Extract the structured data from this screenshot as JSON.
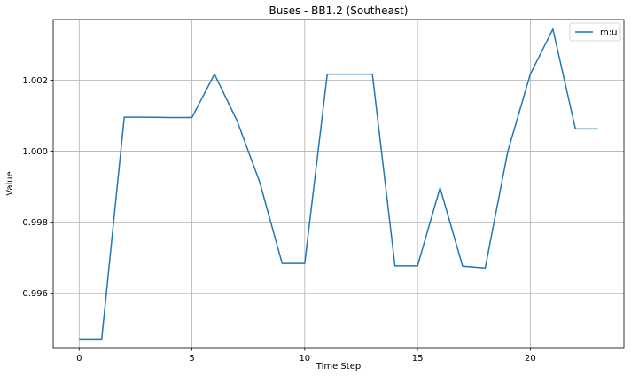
{
  "chart_data": {
    "type": "line",
    "title": "Buses - BB1.2 (Southeast)",
    "xlabel": "Time Step",
    "ylabel": "Value",
    "xlim": [
      -1.15,
      24.15
    ],
    "ylim": [
      0.99447,
      1.00371
    ],
    "xticks": [
      0,
      5,
      10,
      15,
      20
    ],
    "xtick_labels": [
      "0",
      "5",
      "10",
      "15",
      "20"
    ],
    "yticks": [
      0.996,
      0.998,
      1.0,
      1.002
    ],
    "ytick_labels": [
      "0.996",
      "0.998",
      "1.000",
      "1.002"
    ],
    "grid": true,
    "legend": "top-right",
    "series": [
      {
        "name": "m:u",
        "color": "#1f77b4",
        "x": [
          0,
          1,
          2,
          3,
          4,
          5,
          6,
          7,
          8,
          9,
          10,
          11,
          12,
          13,
          14,
          15,
          16,
          17,
          18,
          19,
          20,
          21,
          22,
          23
        ],
        "y": [
          0.99471,
          0.99471,
          1.00096,
          1.00096,
          1.00095,
          1.00095,
          1.00217,
          1.00086,
          0.99914,
          0.99684,
          0.99684,
          1.00217,
          1.00217,
          1.00217,
          0.99677,
          0.99677,
          0.99897,
          0.99676,
          0.99671,
          0.99999,
          1.00217,
          1.00344,
          1.00063,
          1.00063
        ]
      }
    ]
  }
}
